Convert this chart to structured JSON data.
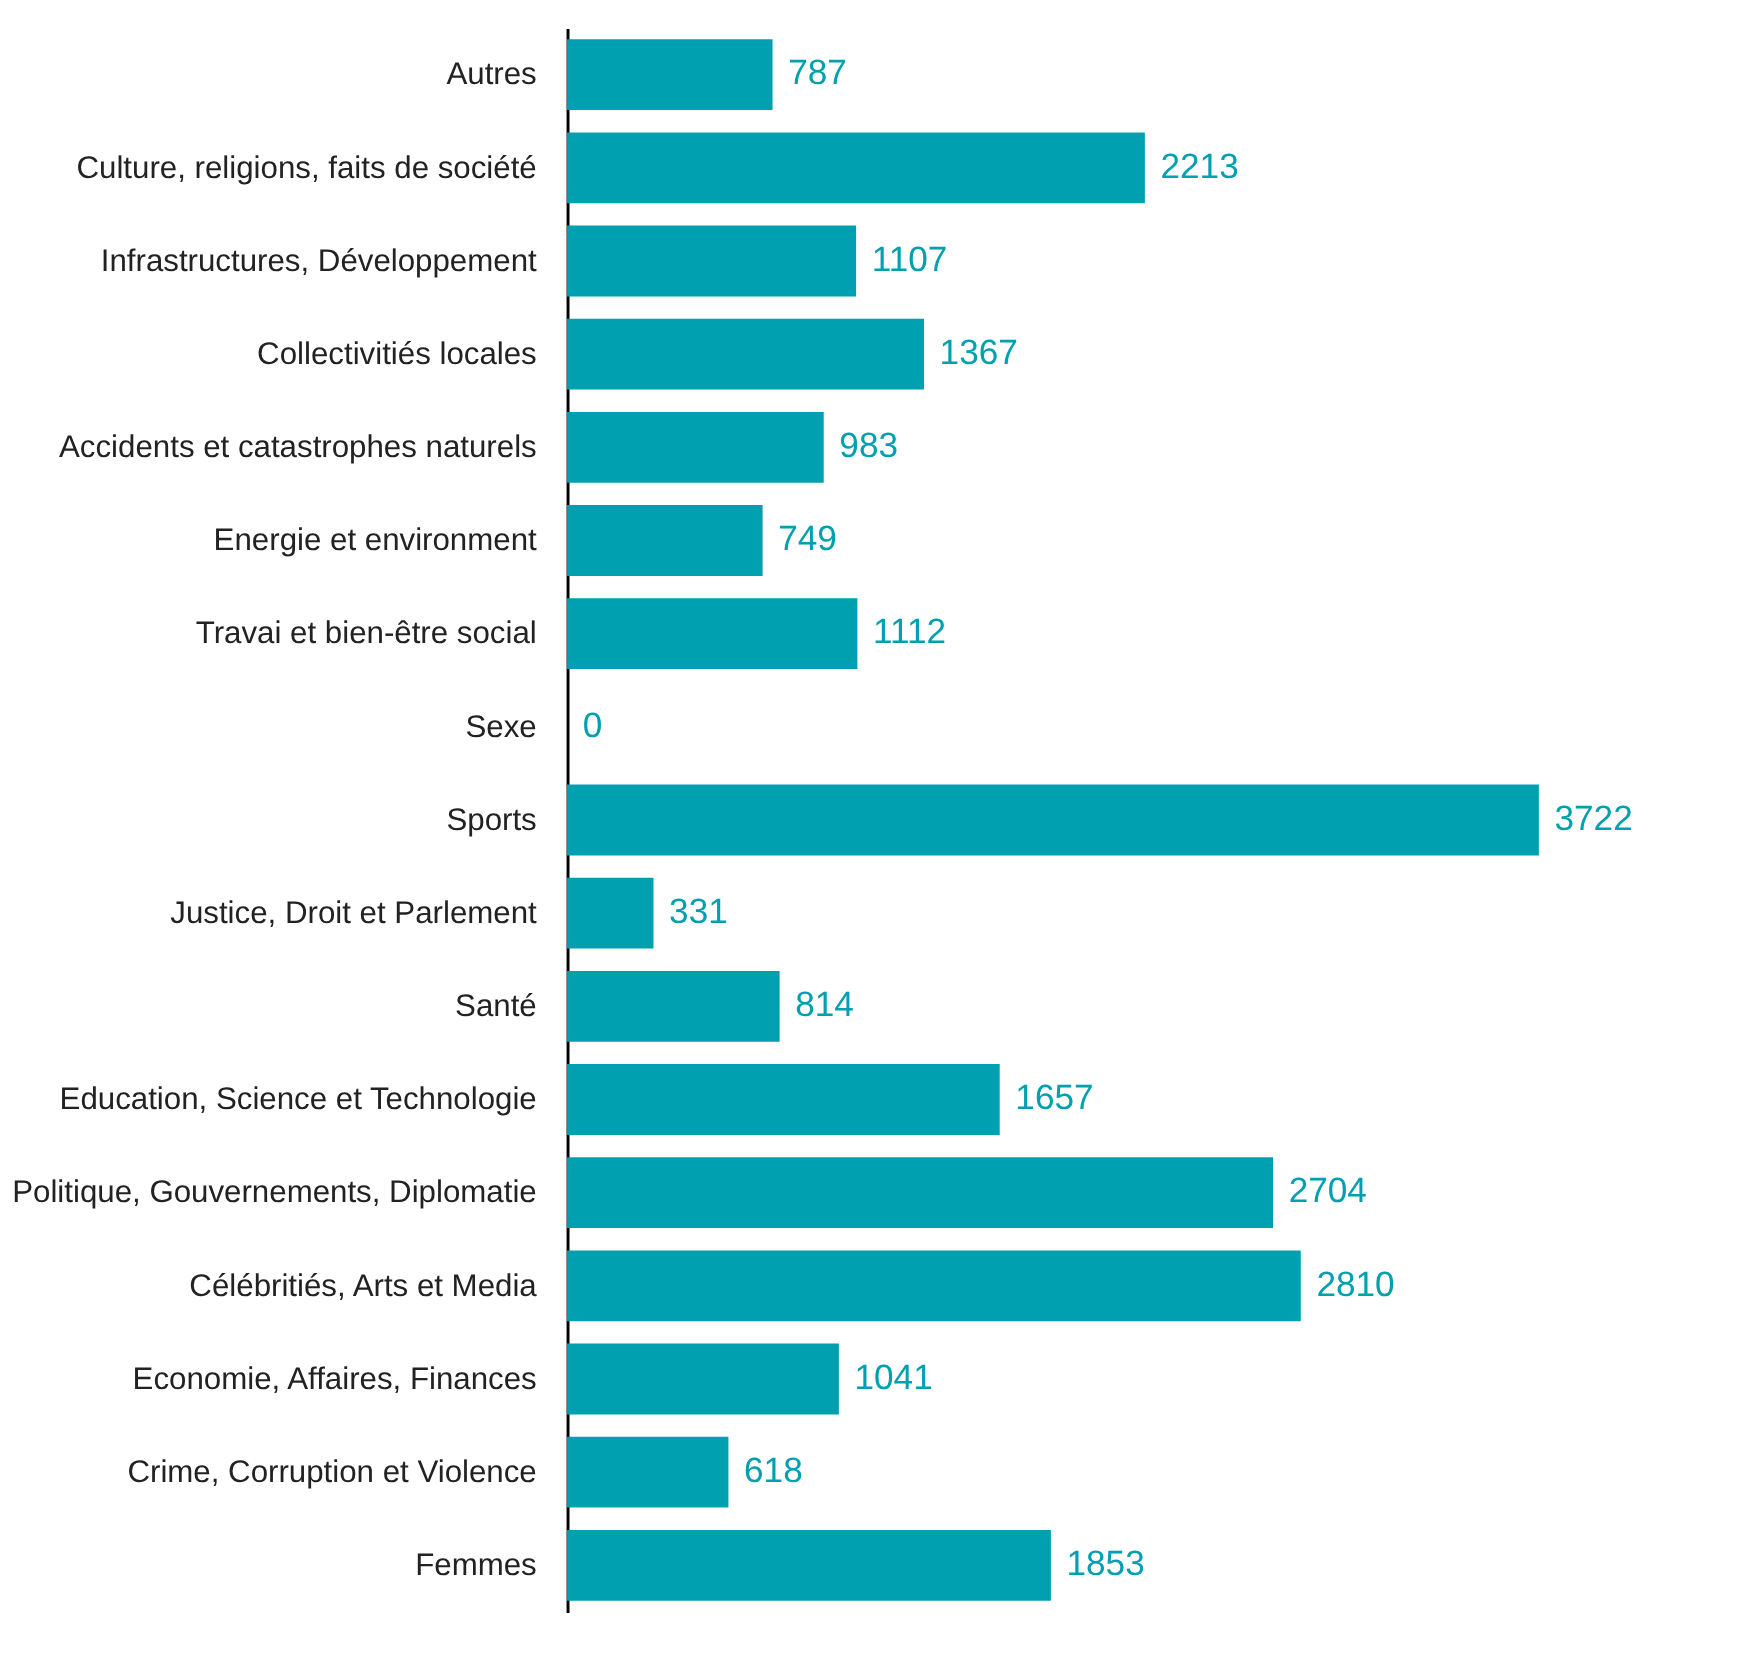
{
  "chart_data": {
    "type": "bar",
    "orientation": "horizontal",
    "categories": [
      "Autres",
      "Culture, religions, faits de société",
      "Infrastructures, Développement",
      "Collectivitiés locales",
      "Accidents et catastrophes naturels",
      "Energie et environment",
      "Travai et bien-être social",
      "Sexe",
      "Sports",
      "Justice, Droit et Parlement",
      "Santé",
      "Education, Science et Technologie",
      "Politique, Gouvernements, Diplomatie",
      "Célébritiés, Arts et Media",
      "Economie, Affaires, Finances",
      "Crime, Corruption et Violence",
      "Femmes"
    ],
    "values": [
      787,
      2213,
      1107,
      1367,
      983,
      749,
      1112,
      0,
      3722,
      331,
      814,
      1657,
      2704,
      2810,
      1041,
      618,
      1853
    ],
    "color": "#00a0b0",
    "data_labels": true,
    "tick_labels": "y",
    "grid": false
  }
}
